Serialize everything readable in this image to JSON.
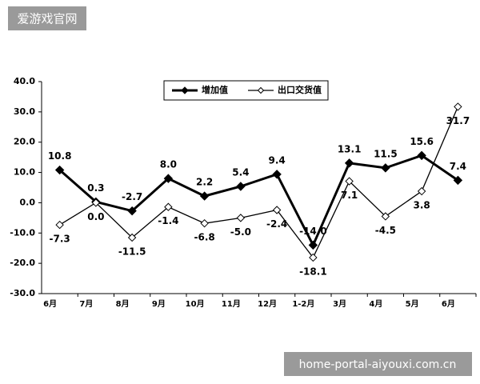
{
  "chart_data": {
    "type": "line",
    "categories": [
      "6月",
      "7月",
      "8月",
      "9月",
      "10月",
      "11月",
      "12月",
      "1-2月",
      "3月",
      "4月",
      "5月",
      "6月"
    ],
    "series": [
      {
        "name": "增加值",
        "color": "#000000",
        "values": [
          10.8,
          0.3,
          -2.7,
          8.0,
          2.2,
          5.4,
          9.4,
          -14.0,
          13.1,
          11.5,
          15.6,
          7.4
        ],
        "value_labels": [
          "10.8",
          "0.3",
          "-2.7",
          "8.0",
          "2.2",
          "5.4",
          "9.4",
          "-14.0",
          "13.1",
          "11.5",
          "15.6",
          "7.4"
        ]
      },
      {
        "name": "出口交货值",
        "color": "#000000",
        "values": [
          -7.3,
          0.0,
          -11.5,
          -1.4,
          -6.8,
          -5.0,
          -2.4,
          -18.1,
          7.1,
          -4.5,
          3.8,
          31.7
        ],
        "value_labels": [
          "-7.3",
          "0.0",
          "-11.5",
          "-1.4",
          "-6.8",
          "-5.0",
          "-2.4",
          "-18.1",
          "7.1",
          "-4.5",
          "3.8",
          "31.7"
        ]
      }
    ],
    "ylim": [
      -30,
      40
    ],
    "yticks": [
      {
        "value": -30,
        "label": "-30.0"
      },
      {
        "value": -20,
        "label": "-20.0"
      },
      {
        "value": -10,
        "label": "-10.0"
      },
      {
        "value": 0,
        "label": "0.0"
      },
      {
        "value": 10,
        "label": "10.0"
      },
      {
        "value": 20,
        "label": "20.0"
      },
      {
        "value": 30,
        "label": "30.0"
      },
      {
        "value": 40,
        "label": "40.0"
      }
    ],
    "grid": false
  },
  "watermark": "爱游戏官网",
  "footer_watermark": "home-portal-aiyouxi.com.cn"
}
